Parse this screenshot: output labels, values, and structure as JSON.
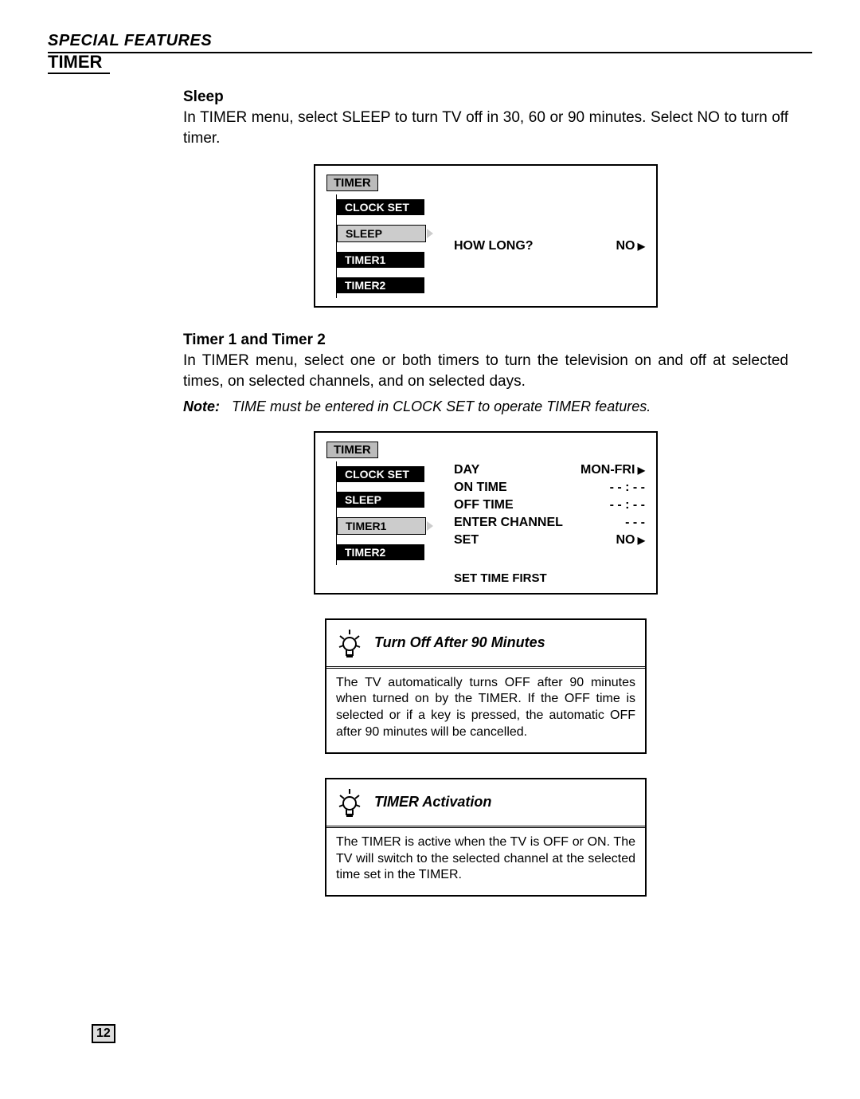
{
  "header": "SPECIAL FEATURES",
  "section": "TIMER",
  "sleep": {
    "heading": "Sleep",
    "body": "In TIMER menu, select SLEEP to turn TV off in 30, 60 or 90 minutes. Select NO to turn off timer."
  },
  "timer12": {
    "heading": "Timer 1 and Timer 2",
    "body": "In TIMER menu, select one or both timers to turn the television on and off at selected times, on selected channels, and on selected days.",
    "note_label": "Note:",
    "note_body": "TIME must be entered in CLOCK SET to operate TIMER features."
  },
  "osd1": {
    "tab": "TIMER",
    "items": [
      "CLOCK SET",
      "SLEEP",
      "TIMER1",
      "TIMER2"
    ],
    "selected_index": 1,
    "right_label": "HOW LONG?",
    "right_value": "NO"
  },
  "osd2": {
    "tab": "TIMER",
    "items": [
      "CLOCK SET",
      "SLEEP",
      "TIMER1",
      "TIMER2"
    ],
    "selected_index": 2,
    "rows": [
      {
        "label": "DAY",
        "value": "MON-FRI",
        "arrow": true
      },
      {
        "label": "ON TIME",
        "value": "- - : - -",
        "arrow": false
      },
      {
        "label": "OFF TIME",
        "value": "- - : - -",
        "arrow": false
      },
      {
        "label": "ENTER CHANNEL",
        "value": "- - -",
        "arrow": false
      },
      {
        "label": "SET",
        "value": "NO",
        "arrow": true
      }
    ],
    "footer": "SET TIME FIRST"
  },
  "tip1": {
    "title": "Turn Off After 90 Minutes",
    "body": "The TV automatically turns OFF after 90 minutes when turned on by the TIMER. If the OFF time is selected or if a key is pressed, the automatic OFF after 90 minutes will be cancelled."
  },
  "tip2": {
    "title": "TIMER Activation",
    "body": "The TIMER is active when the TV is OFF or ON. The TV will switch to the selected channel at the selected time set in the TIMER."
  },
  "page_number": "12"
}
